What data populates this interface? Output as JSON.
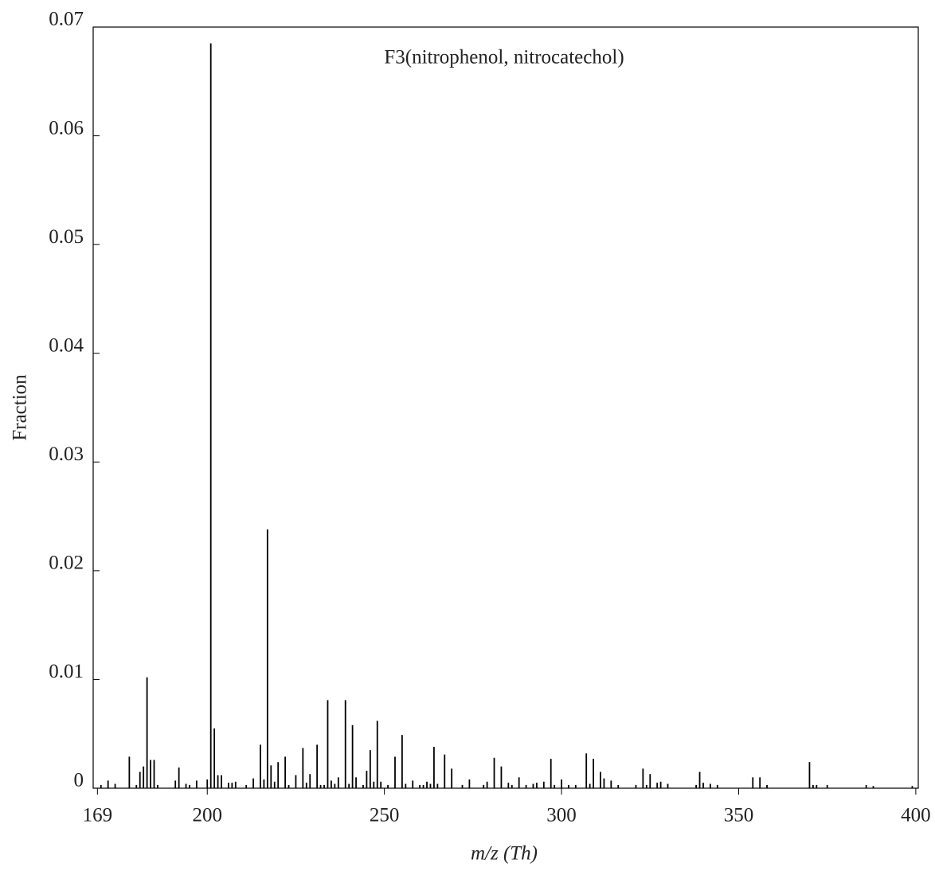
{
  "chart_data": {
    "type": "bar",
    "title": "F3(nitrophenol, nitrocatechol)",
    "x_label": "m/z (Th)",
    "y_label": "Fraction",
    "color": "#000000",
    "x": [
      170,
      172,
      174,
      178,
      180,
      181,
      182,
      183,
      184,
      185,
      186,
      191,
      192,
      194,
      195,
      197,
      200,
      201,
      202,
      203,
      204,
      206,
      207,
      208,
      211,
      213,
      215,
      216,
      217,
      218,
      219,
      220,
      222,
      223,
      225,
      227,
      228,
      229,
      231,
      232,
      233,
      234,
      235,
      236,
      237,
      239,
      240,
      241,
      242,
      244,
      245,
      246,
      247,
      248,
      249,
      251,
      253,
      255,
      256,
      258,
      260,
      261,
      262,
      263,
      264,
      265,
      267,
      269,
      272,
      274,
      278,
      279,
      281,
      283,
      285,
      286,
      288,
      290,
      292,
      293,
      295,
      297,
      298,
      300,
      302,
      304,
      307,
      308,
      309,
      311,
      312,
      314,
      316,
      321,
      323,
      324,
      325,
      327,
      328,
      330,
      338,
      339,
      340,
      342,
      344,
      354,
      356,
      358,
      370,
      371,
      372,
      375,
      386,
      388,
      399
    ],
    "values": [
      0.0003,
      0.0007,
      0.0004,
      0.0029,
      0.0003,
      0.0015,
      0.002,
      0.0102,
      0.0026,
      0.0026,
      0.0003,
      0.0007,
      0.0019,
      0.0004,
      0.0003,
      0.0007,
      0.0008,
      0.0685,
      0.0055,
      0.0012,
      0.0012,
      0.0005,
      0.0005,
      0.0006,
      0.0003,
      0.0009,
      0.004,
      0.0008,
      0.0238,
      0.0021,
      0.0006,
      0.0024,
      0.0029,
      0.0003,
      0.0012,
      0.0037,
      0.0005,
      0.0013,
      0.004,
      0.0003,
      0.0003,
      0.0081,
      0.0007,
      0.0004,
      0.001,
      0.0081,
      0.0004,
      0.0058,
      0.001,
      0.0003,
      0.0016,
      0.0035,
      0.0006,
      0.0062,
      0.0006,
      0.0003,
      0.0029,
      0.0049,
      0.0004,
      0.0007,
      0.0003,
      0.0003,
      0.0006,
      0.0004,
      0.0038,
      0.0004,
      0.0031,
      0.0018,
      0.0003,
      0.0008,
      0.0003,
      0.0006,
      0.0028,
      0.002,
      0.0005,
      0.0003,
      0.001,
      0.0003,
      0.0004,
      0.0005,
      0.0006,
      0.0027,
      0.0003,
      0.0008,
      0.0003,
      0.0003,
      0.0032,
      0.0004,
      0.0027,
      0.0015,
      0.0009,
      0.0007,
      0.0003,
      0.0003,
      0.0018,
      0.0003,
      0.0013,
      0.0005,
      0.0006,
      0.0004,
      0.0003,
      0.0015,
      0.0005,
      0.0004,
      0.0003,
      0.001,
      0.001,
      0.0003,
      0.0024,
      0.0003,
      0.0003,
      0.0003,
      0.0003,
      0.0002,
      0.0002
    ],
    "xlim": [
      167.8,
      400.7
    ],
    "ylim": [
      0,
      0.07
    ],
    "xticks": [
      169,
      200,
      250,
      300,
      350,
      400
    ],
    "yticks": [
      0,
      0.01,
      0.02,
      0.03,
      0.04,
      0.05,
      0.06,
      0.07
    ]
  }
}
